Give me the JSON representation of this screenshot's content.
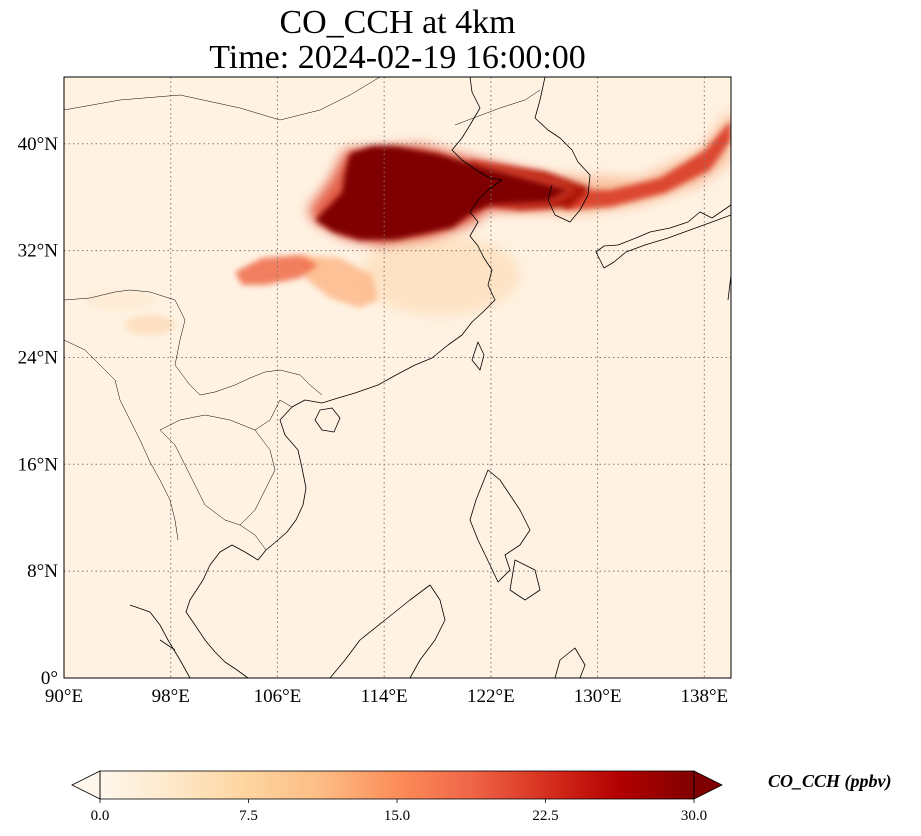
{
  "title": {
    "line1": "CO_CCH at 4km",
    "line2": "Time: 2024-02-19 16:00:00"
  },
  "map": {
    "projection": "PlateCarree",
    "lon_range": [
      90,
      140
    ],
    "lat_range": [
      0,
      45
    ],
    "x_ticks": [
      {
        "value": 90,
        "label": "90°E"
      },
      {
        "value": 98,
        "label": "98°E"
      },
      {
        "value": 106,
        "label": "106°E"
      },
      {
        "value": 114,
        "label": "114°E"
      },
      {
        "value": 122,
        "label": "122°E"
      },
      {
        "value": 130,
        "label": "130°E"
      },
      {
        "value": 138,
        "label": "138°E"
      }
    ],
    "y_ticks": [
      {
        "value": 0,
        "label": "0°"
      },
      {
        "value": 8,
        "label": "8°N"
      },
      {
        "value": 16,
        "label": "16°N"
      },
      {
        "value": 24,
        "label": "24°N"
      },
      {
        "value": 32,
        "label": "32°N"
      },
      {
        "value": 40,
        "label": "40°N"
      }
    ],
    "gridlines": "dotted",
    "background_color": "#fff2e2",
    "plumes": [
      {
        "name": "north-china-plume",
        "lon": [
          110,
          122
        ],
        "lat": [
          33,
          40
        ],
        "level": 30
      },
      {
        "name": "yellow-sea-korea-band",
        "lon": [
          118,
          127
        ],
        "lat": [
          35.5,
          39
        ],
        "level": 28
      },
      {
        "name": "japan-band",
        "lon": [
          127,
          140
        ],
        "lat": [
          35,
          43
        ],
        "level": 24
      },
      {
        "name": "sichuan-chongqing-patch",
        "lon": [
          103,
          110
        ],
        "lat": [
          29,
          31.5
        ],
        "level": 16
      },
      {
        "name": "central-china-streak",
        "lon": [
          108,
          114
        ],
        "lat": [
          27.5,
          31
        ],
        "level": 11
      },
      {
        "name": "hunan-jiangxi-haze",
        "lon": [
          110,
          119
        ],
        "lat": [
          28,
          33
        ],
        "level": 5
      }
    ]
  },
  "colorbar": {
    "cmap": "OrRd",
    "vmin": 0.0,
    "vmax": 30.0,
    "extend": "both",
    "ticks": [
      {
        "value": 0.0,
        "label": "0.0"
      },
      {
        "value": 7.5,
        "label": "7.5"
      },
      {
        "value": 15.0,
        "label": "15.0"
      },
      {
        "value": 22.5,
        "label": "22.5"
      },
      {
        "value": 30.0,
        "label": "30.0"
      }
    ],
    "label": "CO_CCH (ppbv)",
    "colors": [
      "#fff7ec",
      "#fee8c8",
      "#fdd49e",
      "#fdbb84",
      "#fc8d59",
      "#ef6548",
      "#d7301f",
      "#b30000",
      "#7f0000"
    ]
  }
}
